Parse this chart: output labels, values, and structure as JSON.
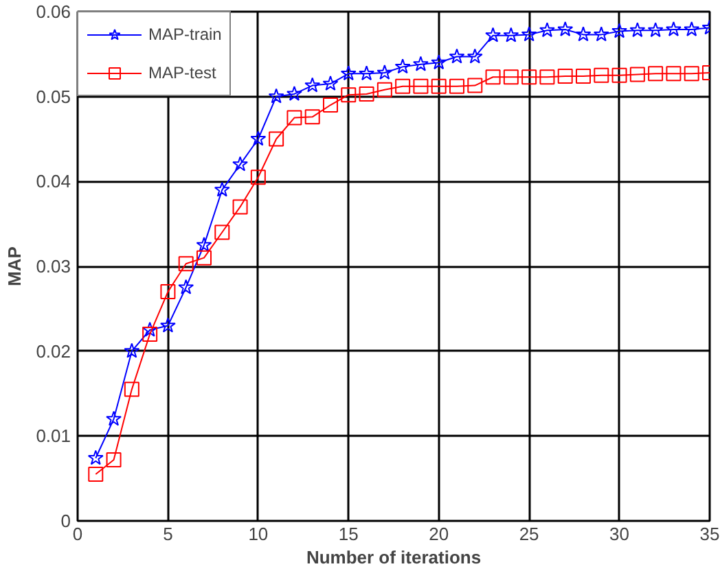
{
  "chart_data": {
    "type": "line",
    "xlabel": "Number of iterations",
    "ylabel": "MAP",
    "x": [
      1,
      2,
      3,
      4,
      5,
      6,
      7,
      8,
      9,
      10,
      11,
      12,
      13,
      14,
      15,
      16,
      17,
      18,
      19,
      20,
      21,
      22,
      23,
      24,
      25,
      26,
      27,
      28,
      29,
      30,
      31,
      32,
      33,
      34,
      35
    ],
    "series": [
      {
        "name": "MAP-train",
        "color": "#0000ff",
        "marker": "star",
        "values": [
          0.0074,
          0.012,
          0.02,
          0.0225,
          0.023,
          0.0275,
          0.0325,
          0.039,
          0.042,
          0.045,
          0.05,
          0.0503,
          0.0513,
          0.0515,
          0.0527,
          0.0527,
          0.0528,
          0.0535,
          0.0538,
          0.054,
          0.0547,
          0.0547,
          0.0572,
          0.0572,
          0.0573,
          0.0578,
          0.0579,
          0.0573,
          0.0573,
          0.0577,
          0.0578,
          0.0578,
          0.0579,
          0.0579,
          0.0581
        ]
      },
      {
        "name": "MAP-test",
        "color": "#ff0000",
        "marker": "square",
        "values": [
          0.0055,
          0.0072,
          0.0155,
          0.022,
          0.027,
          0.0303,
          0.031,
          0.034,
          0.037,
          0.0405,
          0.045,
          0.0475,
          0.0476,
          0.049,
          0.0502,
          0.0503,
          0.0508,
          0.0512,
          0.0512,
          0.0512,
          0.0512,
          0.0513,
          0.0523,
          0.0523,
          0.0523,
          0.0523,
          0.0524,
          0.0524,
          0.0525,
          0.0525,
          0.0526,
          0.0527,
          0.0527,
          0.0527,
          0.0528
        ]
      }
    ],
    "xlim": [
      0,
      35
    ],
    "ylim": [
      0,
      0.06
    ],
    "xticks": [
      0,
      5,
      10,
      15,
      20,
      25,
      30,
      35
    ],
    "yticks": [
      0,
      0.01,
      0.02,
      0.03,
      0.04,
      0.05,
      0.06
    ],
    "grid": true,
    "legend": "top left",
    "line_style": "solid"
  }
}
